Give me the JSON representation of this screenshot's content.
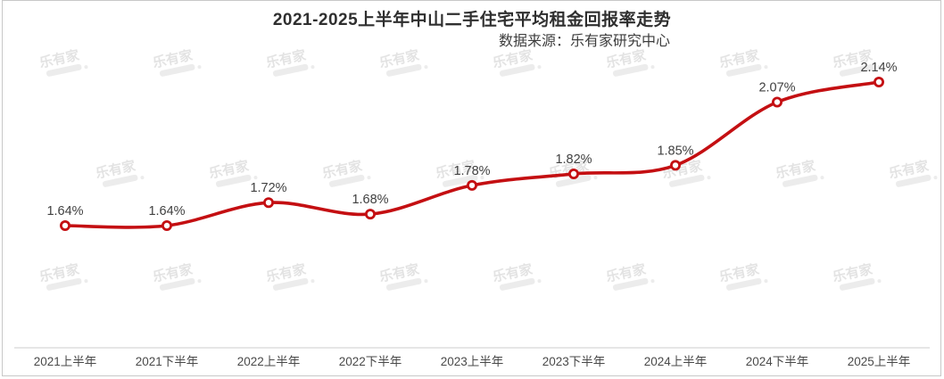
{
  "header": {
    "title": "2021-2025上半年中山二手住宅平均租金回报率走势",
    "source": "数据来源：乐有家研究中心"
  },
  "watermark": {
    "text": "乐有家"
  },
  "colors": {
    "line": "#c40f12",
    "marker_fill": "#ffffff",
    "value_label": "#404040",
    "axis_line": "#cccccc",
    "axis_label": "#4a4a4a",
    "border": "#c8c8c8",
    "watermark": "#e3e3e3"
  },
  "chart_data": {
    "type": "line",
    "title": "2021-2025上半年中山二手住宅平均租金回报率走势",
    "subtitle": "数据来源：乐有家研究中心",
    "categories": [
      "2021上半年",
      "2021下半年",
      "2022上半年",
      "2022下半年",
      "2023上半年",
      "2023下半年",
      "2024上半年",
      "2024下半年",
      "2025上半年"
    ],
    "values": [
      1.64,
      1.64,
      1.72,
      1.68,
      1.78,
      1.82,
      1.85,
      2.07,
      2.14
    ],
    "value_labels": [
      "1.64%",
      "1.64%",
      "1.72%",
      "1.68%",
      "1.78%",
      "1.82%",
      "1.85%",
      "2.07%",
      "2.14%"
    ],
    "unit": "%",
    "xlabel": "",
    "ylabel": "",
    "ylim": [
      1.215,
      2.25
    ],
    "grid": false,
    "legend_position": "none",
    "smooth": true,
    "marker": "open-circle"
  }
}
